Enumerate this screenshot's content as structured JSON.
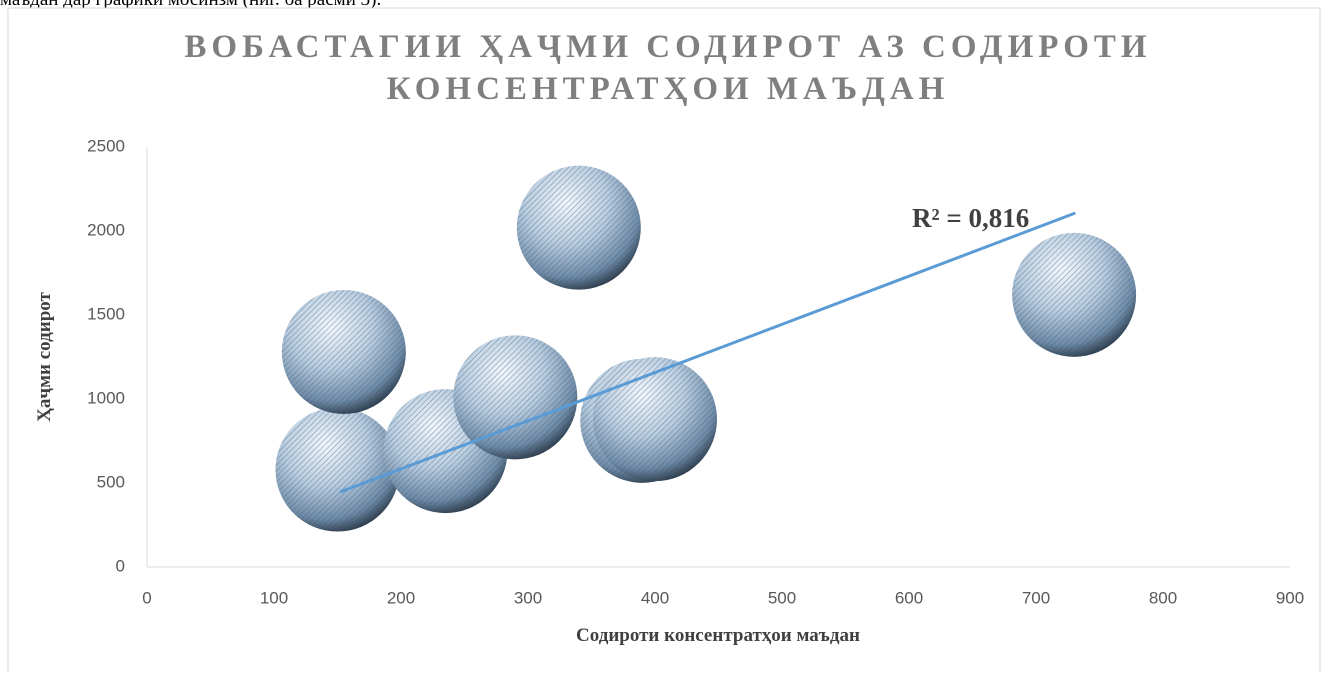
{
  "page_text": "маъдан дар графики мосинзм (ниг. ба расми 3).",
  "chart_data": {
    "type": "scatter",
    "title": [
      "ВОБАСТАГИИ ҲАҶМИ СОДИРОТ АЗ СОДИРОТИ",
      "КОНСЕНТРАТҲОИ МАЪДАН"
    ],
    "x_label": "Содироти консентратҳои маъдан",
    "y_label": "Ҳаҷми содирот",
    "x": [
      150,
      155,
      235,
      290,
      340,
      390,
      400,
      730
    ],
    "values": [
      580,
      1280,
      690,
      1010,
      2020,
      870,
      880,
      1620
    ],
    "trendline": {
      "x": [
        152,
        731
      ],
      "y": [
        446,
        2107
      ],
      "color": "#5b9bd5",
      "label": "R² = 0,816"
    },
    "xlim": [
      0,
      900
    ],
    "xticks": [
      0,
      100,
      200,
      300,
      400,
      500,
      600,
      700,
      800,
      900
    ],
    "ylim": [
      0,
      2500
    ],
    "yticks": [
      0,
      500,
      1000,
      1500,
      2000,
      2500
    ]
  }
}
